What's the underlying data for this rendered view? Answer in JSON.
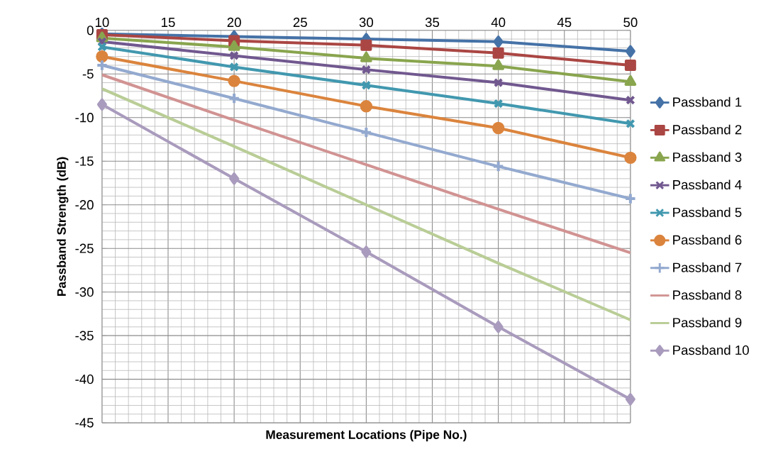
{
  "chart_data": {
    "type": "line",
    "xlabel": "Measurement Locations (Pipe No.)",
    "ylabel": "Passband Strength (dB)",
    "x": [
      10,
      20,
      30,
      40,
      50
    ],
    "series": [
      {
        "name": "Passband 1",
        "color": "#4572a7",
        "marker": "diamond",
        "values": [
          -0.4,
          -0.7,
          -1.0,
          -1.3,
          -2.4
        ]
      },
      {
        "name": "Passband 2",
        "color": "#aa4643",
        "marker": "square",
        "values": [
          -0.5,
          -1.2,
          -1.7,
          -2.6,
          -4.0
        ]
      },
      {
        "name": "Passband 3",
        "color": "#89a54e",
        "marker": "triangle",
        "values": [
          -0.9,
          -1.9,
          -3.2,
          -4.1,
          -5.9
        ]
      },
      {
        "name": "Passband 4",
        "color": "#71588f",
        "marker": "cross",
        "values": [
          -1.3,
          -2.9,
          -4.5,
          -6.0,
          -8.0
        ]
      },
      {
        "name": "Passband 5",
        "color": "#4198af",
        "marker": "cross",
        "values": [
          -1.9,
          -4.2,
          -6.3,
          -8.4,
          -10.7
        ]
      },
      {
        "name": "Passband 6",
        "color": "#db843d",
        "marker": "circle",
        "values": [
          -3.0,
          -5.8,
          -8.7,
          -11.2,
          -14.6
        ]
      },
      {
        "name": "Passband 7",
        "color": "#93a9cf",
        "marker": "plus",
        "values": [
          -4.0,
          -7.8,
          -11.7,
          -15.6,
          -19.3
        ]
      },
      {
        "name": "Passband 8",
        "color": "#d19392",
        "marker": "none",
        "values": [
          -5.1,
          -10.3,
          -15.4,
          -20.5,
          -25.5
        ]
      },
      {
        "name": "Passband 9",
        "color": "#b9cd96",
        "marker": "none",
        "values": [
          -6.7,
          -13.3,
          -20.0,
          -26.7,
          -33.2
        ]
      },
      {
        "name": "Passband 10",
        "color": "#a99bbd",
        "marker": "diamond",
        "values": [
          -8.5,
          -17.0,
          -25.4,
          -34.0,
          -42.3
        ]
      }
    ],
    "xlim": [
      10,
      50
    ],
    "xticks": [
      10,
      15,
      20,
      25,
      30,
      35,
      40,
      45,
      50
    ],
    "ylim": [
      -45,
      0
    ],
    "yticks": [
      -45,
      -40,
      -35,
      -30,
      -25,
      -20,
      -15,
      -10,
      -5,
      0
    ],
    "grid": true,
    "legend": "right",
    "line_style": "solid"
  }
}
